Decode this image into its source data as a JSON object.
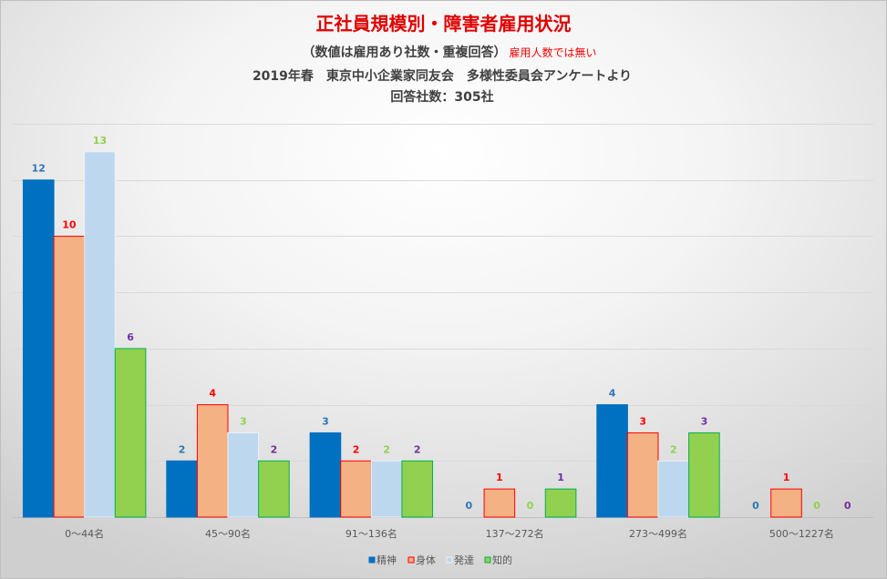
{
  "style": {
    "title_color": "#E00000",
    "note_color": "#FF0000",
    "text_color": "#404040"
  },
  "chart_data": {
    "type": "bar",
    "title": "正社員規模別・障害者雇用状況",
    "subtitle": "（数値は雇用あり社数・重複回答）",
    "subtitle_note": "雇用人数では無い",
    "source": "2019年春　東京中小企業家同友会　多様性委員会アンケートより",
    "respondents": "回答社数：305社",
    "categories": [
      "0～44名",
      "45～90名",
      "91～136名",
      "137～272名",
      "273～499名",
      "500～1227名"
    ],
    "series": [
      {
        "name": "精神",
        "values": [
          12,
          2,
          3,
          0,
          4,
          0
        ],
        "color": "#0070C0",
        "border": "#0070C0",
        "label_color": "#2E75B6"
      },
      {
        "name": "身体",
        "values": [
          10,
          4,
          2,
          1,
          3,
          1
        ],
        "color": "#F4B183",
        "border": "#FF0000",
        "label_color": "#FF0000"
      },
      {
        "name": "発達",
        "values": [
          13,
          3,
          2,
          0,
          2,
          0
        ],
        "color": "#BDD7EE",
        "border": "#EAF2FA",
        "label_color": "#92D050"
      },
      {
        "name": "知的",
        "values": [
          6,
          2,
          2,
          1,
          3,
          0
        ],
        "color": "#92D050",
        "border": "#00B050",
        "label_color": "#7030A0"
      }
    ],
    "ylim": [
      0,
      14
    ],
    "grid": true,
    "data_labels": true,
    "legend": "bottom"
  }
}
